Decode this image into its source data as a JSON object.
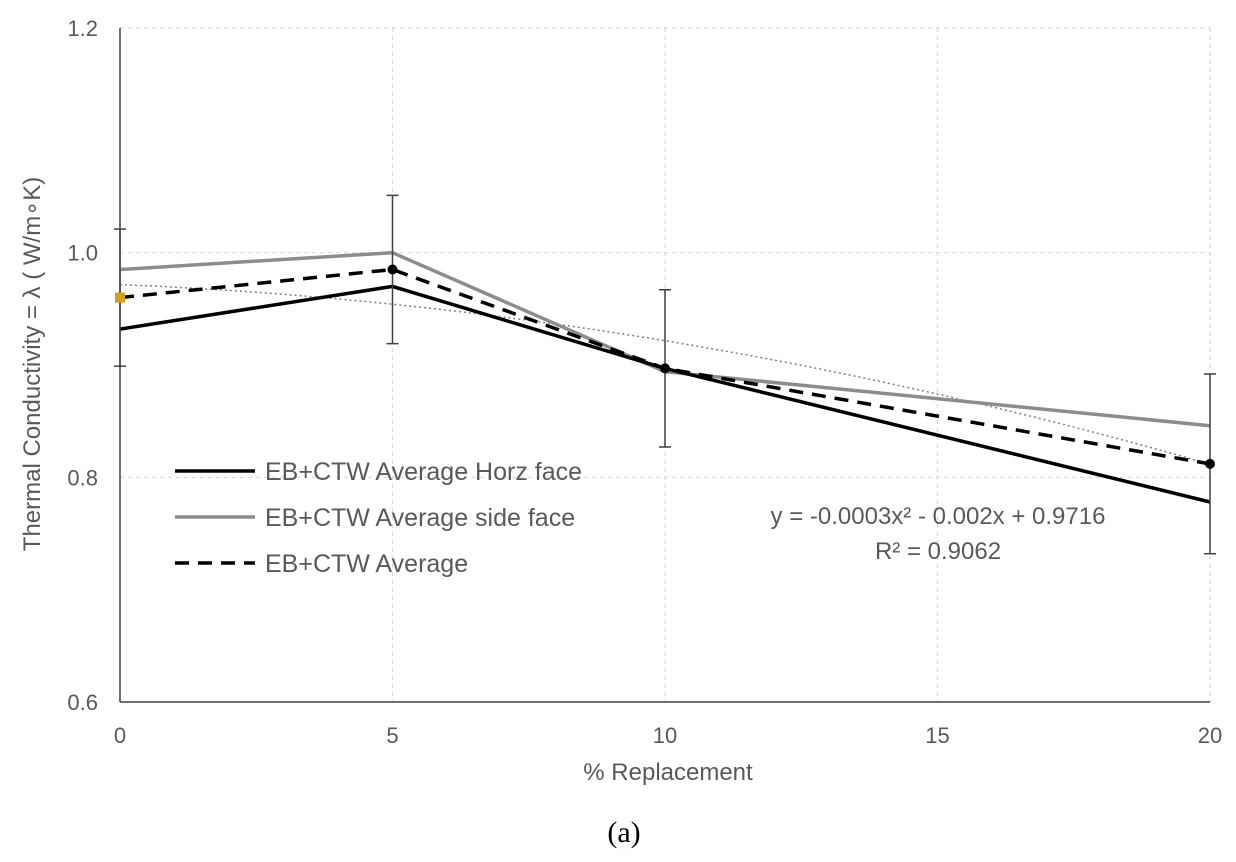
{
  "chart_data": {
    "type": "line",
    "title": "",
    "xlabel": "% Replacement",
    "ylabel": "Thermal Conductivity  = λ ( W/m∘K)",
    "x": [
      0,
      5,
      10,
      15,
      20
    ],
    "x_ticks": [
      "0",
      "5",
      "10",
      "15",
      "20"
    ],
    "y_ticks": [
      "0.6",
      "0.8",
      "1.0",
      "1.2"
    ],
    "xlim": [
      0,
      20
    ],
    "ylim": [
      0.6,
      1.2
    ],
    "grid": "dashed vertical and horizontal",
    "series": [
      {
        "name": "EB+CTW Average Horz face",
        "style": "solid",
        "color": "#000000",
        "x": [
          0,
          5,
          10,
          20
        ],
        "values": [
          0.932,
          0.97,
          0.897,
          0.778
        ]
      },
      {
        "name": "EB+CTW Average side face",
        "style": "solid",
        "color": "#8c8c8c",
        "x": [
          0,
          5,
          10,
          20
        ],
        "values": [
          0.985,
          1.0,
          0.894,
          0.846
        ]
      },
      {
        "name": "EB+CTW Average",
        "style": "dashed",
        "color": "#000000",
        "x": [
          0,
          5,
          10,
          20
        ],
        "values": [
          0.96,
          0.985,
          0.897,
          0.812
        ],
        "error_bars": [
          0.061,
          0.066,
          0.07,
          0.08
        ]
      }
    ],
    "trendline": {
      "type": "polynomial",
      "style": "dotted",
      "color": "#7f7f7f",
      "coefficients": {
        "a": -0.0003,
        "b": -0.002,
        "c": 0.9716
      },
      "equation": "y = -0.0003x² - 0.002x + 0.9716",
      "r_squared": "R² = 0.9062"
    },
    "highlight_marker": {
      "x": 0,
      "y": 0.96,
      "color": "#d4a017"
    },
    "legend": "left-middle",
    "caption": "(a)"
  }
}
